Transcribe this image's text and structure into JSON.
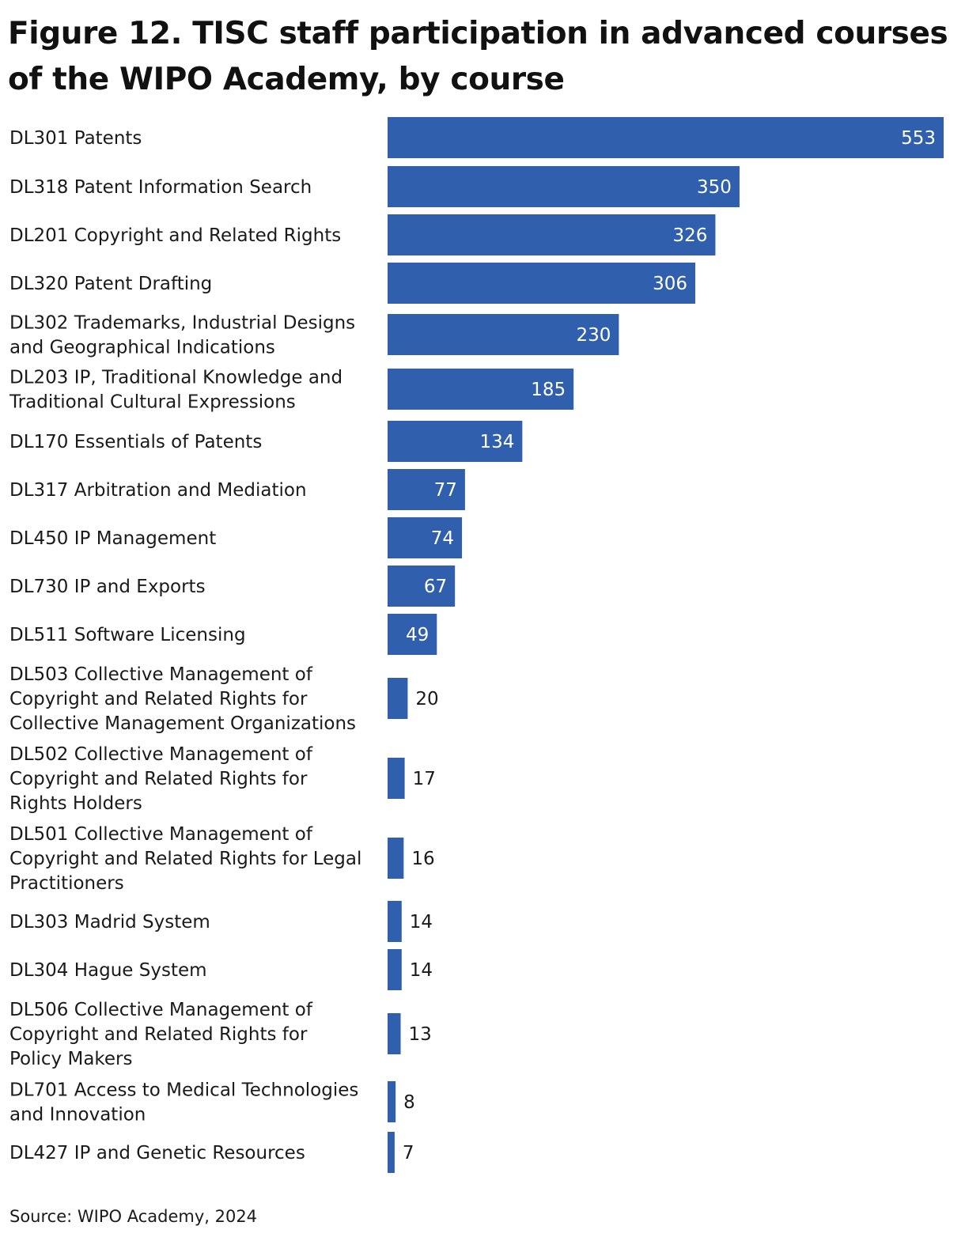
{
  "title": "Figure 12. TISC staff participation in advanced courses of the WIPO Academy, by course",
  "source": "Source: WIPO Academy, 2024",
  "colors": {
    "bar": "#2f5fad",
    "label_inside": "#ffffff",
    "label_outside": "#1a1a1a"
  },
  "chart_data": {
    "type": "bar",
    "orientation": "horizontal",
    "title": "Figure 12. TISC staff participation in advanced courses of the WIPO Academy, by course",
    "xlabel": "",
    "ylabel": "",
    "grid": false,
    "legend": "none",
    "xlim": [
      0,
      553
    ],
    "categories": [
      "DL301 Patents",
      "DL318 Patent Information Search",
      "DL201 Copyright and Related Rights",
      "DL320 Patent Drafting",
      "DL302 Trademarks, Industrial Designs and Geographical Indications",
      "DL203 IP, Traditional Knowledge and Traditional Cultural Expressions",
      "DL170 Essentials of Patents",
      "DL317 Arbitration and Mediation",
      "DL450 IP Management",
      "DL730 IP and Exports",
      "DL511 Software Licensing",
      "DL503 Collective Management of Copyright and Related Rights for Collective Management Organizations",
      "DL502 Collective Management of Copyright and Related Rights for Rights Holders",
      "DL501 Collective Management of Copyright and Related Rights for Legal Practitioners",
      "DL303 Madrid System",
      "DL304 Hague System",
      "DL506 Collective Management of Copyright and Related Rights for Policy Makers",
      "DL701 Access to Medical Technologies and Innovation",
      "DL427 IP and Genetic Resources"
    ],
    "category_lines": [
      [
        "DL301 Patents"
      ],
      [
        "DL318 Patent Information Search"
      ],
      [
        "DL201 Copyright and Related Rights"
      ],
      [
        "DL320 Patent Drafting"
      ],
      [
        "DL302 Trademarks, Industrial Designs",
        "and Geographical Indications"
      ],
      [
        "DL203 IP, Traditional Knowledge and",
        "Traditional Cultural Expressions"
      ],
      [
        "DL170 Essentials of Patents"
      ],
      [
        "DL317 Arbitration and Mediation"
      ],
      [
        "DL450 IP Management"
      ],
      [
        "DL730 IP and Exports"
      ],
      [
        "DL511 Software Licensing"
      ],
      [
        "DL503 Collective Management of",
        "Copyright and Related Rights for",
        "Collective Management Organizations"
      ],
      [
        "DL502 Collective Management of",
        "Copyright and Related Rights for",
        "Rights Holders"
      ],
      [
        "DL501 Collective Management of",
        "Copyright and Related Rights for Legal",
        "Practitioners"
      ],
      [
        "DL303 Madrid System"
      ],
      [
        "DL304 Hague System"
      ],
      [
        "DL506 Collective Management of",
        "Copyright and Related Rights for",
        "Policy Makers"
      ],
      [
        "DL701 Access to Medical Technologies",
        "and Innovation"
      ],
      [
        "DL427 IP and Genetic Resources"
      ]
    ],
    "values": [
      553,
      350,
      326,
      306,
      230,
      185,
      134,
      77,
      74,
      67,
      49,
      20,
      17,
      16,
      14,
      14,
      13,
      8,
      7
    ]
  }
}
